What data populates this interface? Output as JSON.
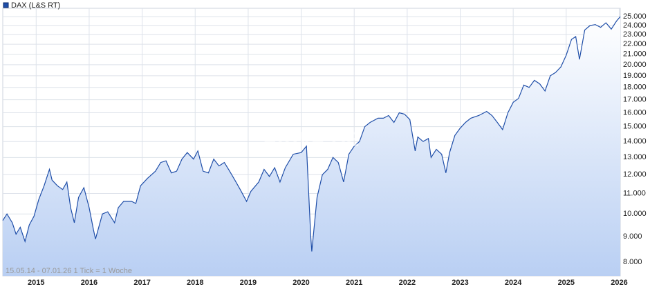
{
  "chart_data": {
    "type": "line",
    "title": "DAX (L&S RT)",
    "watermark": "ARIVA.DE",
    "footnote": "15.05.14 - 07.01.26   1 Tick = 1 Woche",
    "log_scale": true,
    "grid": true,
    "legend": "top-left",
    "xlim": [
      2014.37,
      2026.02
    ],
    "ylim": [
      7500,
      26000
    ],
    "xticks": [
      2015,
      2016,
      2017,
      2018,
      2019,
      2020,
      2021,
      2022,
      2023,
      2024,
      2025,
      2026
    ],
    "yticks": [
      {
        "value": 8000,
        "label": "8.000"
      },
      {
        "value": 9000,
        "label": "9.000"
      },
      {
        "value": 10000,
        "label": "10.000"
      },
      {
        "value": 11000,
        "label": "11.000"
      },
      {
        "value": 12000,
        "label": "12.000"
      },
      {
        "value": 13000,
        "label": "13.000"
      },
      {
        "value": 14000,
        "label": "14.000"
      },
      {
        "value": 15000,
        "label": "15.000"
      },
      {
        "value": 16000,
        "label": "16.000"
      },
      {
        "value": 17000,
        "label": "17.000"
      },
      {
        "value": 18000,
        "label": "18.000"
      },
      {
        "value": 19000,
        "label": "19.000"
      },
      {
        "value": 20000,
        "label": "20.000"
      },
      {
        "value": 21000,
        "label": "21.000"
      },
      {
        "value": 22000,
        "label": "22.000"
      },
      {
        "value": 23000,
        "label": "23.000"
      },
      {
        "value": 24000,
        "label": "24.000"
      },
      {
        "value": 25000,
        "label": "25.000"
      }
    ],
    "x": [
      2014.37,
      2014.45,
      2014.55,
      2014.62,
      2014.7,
      2014.79,
      2014.87,
      2014.96,
      2015.05,
      2015.15,
      2015.25,
      2015.3,
      2015.4,
      2015.5,
      2015.58,
      2015.65,
      2015.72,
      2015.8,
      2015.9,
      2016.0,
      2016.08,
      2016.12,
      2016.25,
      2016.35,
      2016.48,
      2016.55,
      2016.65,
      2016.8,
      2016.88,
      2016.97,
      2017.1,
      2017.25,
      2017.35,
      2017.45,
      2017.55,
      2017.65,
      2017.75,
      2017.85,
      2017.97,
      2018.05,
      2018.15,
      2018.25,
      2018.35,
      2018.45,
      2018.55,
      2018.65,
      2018.75,
      2018.85,
      2018.97,
      2019.05,
      2019.2,
      2019.3,
      2019.4,
      2019.5,
      2019.6,
      2019.7,
      2019.85,
      2020.0,
      2020.1,
      2020.18,
      2020.2,
      2020.3,
      2020.4,
      2020.5,
      2020.6,
      2020.7,
      2020.8,
      2020.9,
      2021.0,
      2021.1,
      2021.2,
      2021.3,
      2021.45,
      2021.55,
      2021.65,
      2021.75,
      2021.85,
      2021.95,
      2022.05,
      2022.15,
      2022.2,
      2022.3,
      2022.4,
      2022.45,
      2022.55,
      2022.65,
      2022.73,
      2022.8,
      2022.9,
      2023.0,
      2023.1,
      2023.2,
      2023.35,
      2023.5,
      2023.6,
      2023.7,
      2023.8,
      2023.9,
      2024.0,
      2024.1,
      2024.2,
      2024.3,
      2024.4,
      2024.5,
      2024.6,
      2024.7,
      2024.8,
      2024.9,
      2025.0,
      2025.1,
      2025.18,
      2025.25,
      2025.35,
      2025.45,
      2025.55,
      2025.65,
      2025.75,
      2025.85,
      2025.95,
      2026.02
    ],
    "series": [
      {
        "name": "DAX (L&S RT)",
        "color": "#1f4ea8",
        "values": [
          9700,
          10000,
          9600,
          9100,
          9400,
          8800,
          9500,
          9900,
          10700,
          11400,
          12300,
          11700,
          11400,
          11200,
          11600,
          10300,
          9600,
          10800,
          11300,
          10300,
          9300,
          8900,
          10000,
          10100,
          9600,
          10300,
          10600,
          10600,
          10500,
          11400,
          11800,
          12200,
          12700,
          12800,
          12100,
          12200,
          12900,
          13300,
          12900,
          13400,
          12200,
          12100,
          12900,
          12500,
          12700,
          12200,
          11700,
          11200,
          10600,
          11100,
          11600,
          12300,
          11900,
          12400,
          11600,
          12400,
          13200,
          13300,
          13700,
          9000,
          8400,
          10800,
          12000,
          12300,
          13000,
          12700,
          11600,
          13200,
          13700,
          14000,
          15000,
          15300,
          15600,
          15600,
          15800,
          15300,
          16000,
          15900,
          15500,
          13400,
          14300,
          14000,
          14200,
          13000,
          13500,
          13200,
          12100,
          13300,
          14400,
          14900,
          15300,
          15600,
          15800,
          16100,
          15800,
          15300,
          14800,
          16000,
          16800,
          17100,
          18200,
          18000,
          18600,
          18300,
          17700,
          19000,
          19300,
          19800,
          20900,
          22500,
          22800,
          20500,
          23500,
          24000,
          24100,
          23800,
          24300,
          23600,
          24500,
          25000
        ]
      }
    ]
  }
}
